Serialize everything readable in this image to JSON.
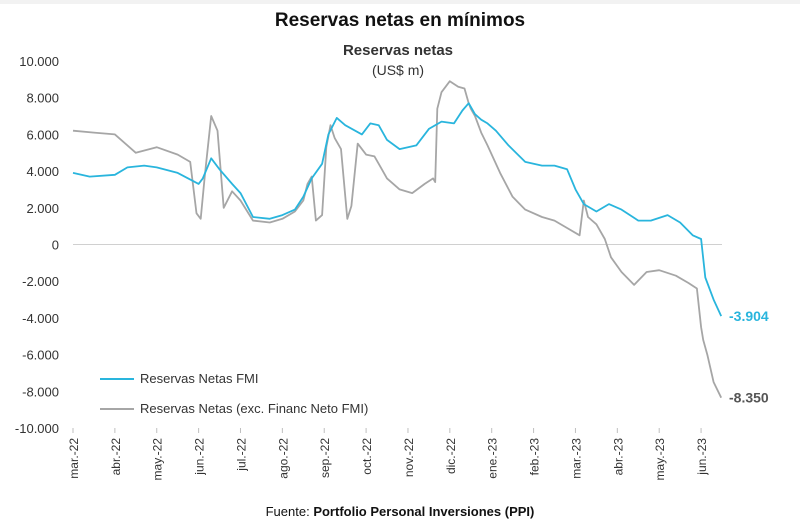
{
  "headline": "Reservas netas en mínimos",
  "source": {
    "prefix": "Fuente: ",
    "name": "Portfolio Personal Inversiones (PPI)"
  },
  "colors": {
    "fmi": "#29b5dd",
    "exc": "#a6a6a6",
    "axis_text": "#333333",
    "zero_line": "#d0d0d0"
  },
  "chart_data": {
    "type": "line",
    "title": "Reservas netas",
    "subtitle": "(US$ m)",
    "xlabel": "",
    "ylabel": "",
    "ylim": [
      -10000,
      10000
    ],
    "ytick_step": 2000,
    "ytick_labels": [
      "10.000",
      "8.000",
      "6.000",
      "4.000",
      "2.000",
      "0",
      "-2.000",
      "-4.000",
      "-6.000",
      "-8.000",
      "-10.000"
    ],
    "xlim": [
      0,
      15.5
    ],
    "categories": [
      "mar.-22",
      "abr.-22",
      "may.-22",
      "jun.-22",
      "jul.-22",
      "ago.-22",
      "sep.-22",
      "oct.-22",
      "nov.-22",
      "dic.-22",
      "ene.-23",
      "feb.-23",
      "mar.-23",
      "abr.-23",
      "may.-23",
      "jun.-23"
    ],
    "legend_position": "bottom-left",
    "series": [
      {
        "name": "Reservas Netas FMI",
        "color": "#29b5dd",
        "end_label": "-3.904",
        "x": [
          0,
          0.4,
          1.0,
          1.3,
          1.7,
          2.0,
          2.5,
          3.0,
          3.1,
          3.3,
          3.5,
          3.8,
          4.0,
          4.3,
          4.7,
          5.0,
          5.3,
          5.5,
          5.7,
          5.95,
          6.1,
          6.3,
          6.5,
          6.9,
          7.1,
          7.3,
          7.5,
          7.8,
          8.2,
          8.5,
          8.8,
          9.1,
          9.3,
          9.45,
          9.6,
          9.75,
          9.9,
          10.1,
          10.4,
          10.8,
          11.2,
          11.5,
          11.8,
          12.0,
          12.2,
          12.5,
          12.8,
          13.1,
          13.5,
          13.8,
          14.2,
          14.5,
          14.8,
          15.0,
          15.1,
          15.3,
          15.48
        ],
        "values": [
          3900,
          3700,
          3800,
          4200,
          4300,
          4200,
          3900,
          3300,
          3600,
          4700,
          4100,
          3300,
          2800,
          1500,
          1400,
          1600,
          1900,
          2600,
          3600,
          4400,
          6000,
          6900,
          6500,
          6000,
          6600,
          6500,
          5700,
          5200,
          5400,
          6300,
          6700,
          6600,
          7300,
          7700,
          7100,
          6800,
          6600,
          6200,
          5400,
          4500,
          4300,
          4300,
          4100,
          3000,
          2200,
          1800,
          2200,
          1900,
          1300,
          1300,
          1600,
          1200,
          500,
          300,
          -1800,
          -3000,
          -3904
        ]
      },
      {
        "name": "Reservas Netas (exc. Financ Neto FMI)",
        "color": "#a6a6a6",
        "end_label": "-8.350",
        "x": [
          0,
          0.5,
          1.0,
          1.5,
          2.0,
          2.5,
          2.8,
          2.95,
          3.05,
          3.15,
          3.3,
          3.45,
          3.6,
          3.8,
          4.0,
          4.3,
          4.7,
          5.0,
          5.3,
          5.5,
          5.6,
          5.7,
          5.8,
          5.95,
          6.05,
          6.15,
          6.25,
          6.4,
          6.55,
          6.65,
          6.8,
          7.0,
          7.2,
          7.5,
          7.8,
          8.1,
          8.4,
          8.6,
          8.65,
          8.7,
          8.8,
          9.0,
          9.2,
          9.35,
          9.45,
          9.5,
          9.6,
          9.75,
          9.9,
          10.2,
          10.5,
          10.8,
          11.2,
          11.5,
          11.8,
          12.1,
          12.2,
          12.3,
          12.5,
          12.7,
          12.85,
          13.1,
          13.4,
          13.7,
          14.0,
          14.4,
          14.7,
          14.9,
          15.0,
          15.05,
          15.15,
          15.3,
          15.48
        ],
        "values": [
          6200,
          6100,
          6000,
          5000,
          5300,
          4900,
          4500,
          1700,
          1400,
          3800,
          7000,
          6200,
          2000,
          2900,
          2400,
          1300,
          1200,
          1400,
          1800,
          2400,
          3300,
          3700,
          1300,
          1600,
          5300,
          6500,
          5800,
          5200,
          1400,
          2100,
          5500,
          4900,
          4800,
          3600,
          3000,
          2800,
          3300,
          3600,
          3400,
          7400,
          8300,
          8900,
          8600,
          8500,
          7700,
          7400,
          7000,
          6100,
          5400,
          3900,
          2600,
          1900,
          1500,
          1300,
          900,
          500,
          2400,
          1500,
          1100,
          300,
          -700,
          -1500,
          -2200,
          -1500,
          -1400,
          -1700,
          -2100,
          -2400,
          -4500,
          -5200,
          -6000,
          -7500,
          -8350
        ]
      }
    ]
  }
}
